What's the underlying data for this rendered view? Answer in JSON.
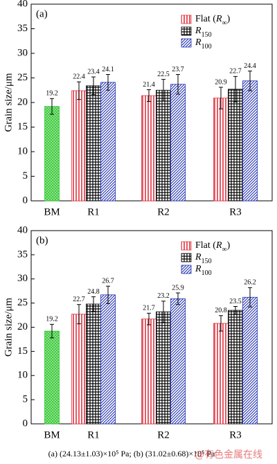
{
  "chart_data": [
    {
      "type": "bar",
      "panel_label": "(a)",
      "y_label": "Grain size/μm",
      "categories": [
        "BM",
        "R1",
        "R2",
        "R3"
      ],
      "series": [
        {
          "name": "Flat (R∞)",
          "color": "#e0303c",
          "colors": [
            "#30c830",
            "#e0303c",
            "#e0303c",
            "#e0303c"
          ],
          "hatches": [
            "cross",
            "vertical",
            "vertical",
            "vertical"
          ],
          "values": [
            19.2,
            22.4,
            21.4,
            20.9
          ],
          "errors": [
            1.6,
            1.8,
            1.2,
            2.2
          ]
        },
        {
          "name": "R150",
          "color": "#000000",
          "hatch": "grid",
          "values": [
            null,
            23.4,
            22.5,
            22.7
          ],
          "errors": [
            null,
            1.8,
            2.2,
            2.6
          ]
        },
        {
          "name": "R100",
          "color": "#2030b0",
          "hatch": "diagonal",
          "values": [
            null,
            24.1,
            23.7,
            24.4
          ],
          "errors": [
            null,
            1.6,
            2.0,
            2.0
          ]
        }
      ],
      "ylim": [
        0,
        40
      ],
      "yticks": [
        0,
        5,
        10,
        15,
        20,
        25,
        30,
        35,
        40
      ],
      "legend": "upper right"
    },
    {
      "type": "bar",
      "panel_label": "(b)",
      "y_label": "Grain size/μm",
      "categories": [
        "BM",
        "R1",
        "R2",
        "R3"
      ],
      "series": [
        {
          "name": "Flat (R∞)",
          "color": "#e0303c",
          "colors": [
            "#30c830",
            "#e0303c",
            "#e0303c",
            "#e0303c"
          ],
          "hatches": [
            "cross",
            "vertical",
            "vertical",
            "vertical"
          ],
          "values": [
            19.2,
            22.7,
            21.7,
            20.8
          ],
          "errors": [
            1.4,
            2.0,
            1.2,
            1.6
          ]
        },
        {
          "name": "R150",
          "color": "#000000",
          "hatch": "grid",
          "values": [
            null,
            24.8,
            23.2,
            23.5
          ],
          "errors": [
            null,
            1.5,
            2.2,
            0.8
          ]
        },
        {
          "name": "R100",
          "color": "#2030b0",
          "hatch": "diagonal",
          "values": [
            null,
            26.7,
            25.9,
            26.2
          ],
          "errors": [
            null,
            1.8,
            1.2,
            2.0
          ]
        }
      ],
      "ylim": [
        0,
        40
      ],
      "yticks": [
        0,
        5,
        10,
        15,
        20,
        25,
        30,
        35,
        40
      ],
      "legend": "upper right"
    }
  ],
  "caption": "(a) (24.13±1.03)×10⁵ Pa;  (b) (31.02±0.68)×10⁵ Pa",
  "watermark": "@有色金属在线"
}
